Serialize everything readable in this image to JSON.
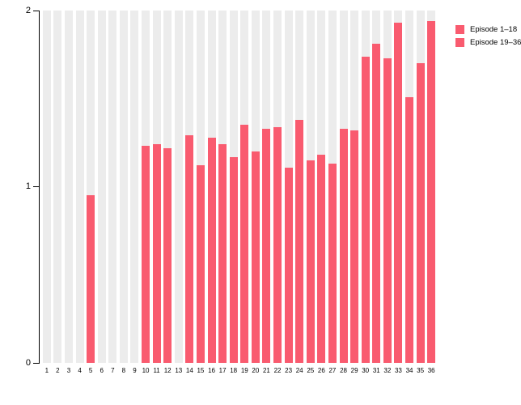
{
  "figure": {
    "background": "#ffffff",
    "bar_color": "#F95B6F",
    "stripe_color": "#ECECEC",
    "axis_color": "#000000"
  },
  "y_axis": {
    "tick_labels": [
      "0",
      "1",
      "2"
    ],
    "min": 0,
    "max": 2
  },
  "legend": {
    "items": [
      {
        "label": "Episode 1–18",
        "color": "#F95B6F"
      },
      {
        "label": "Episode 19–36",
        "color": "#F95B6F"
      }
    ]
  },
  "chart_data": {
    "type": "bar",
    "title": "",
    "xlabel": "",
    "ylabel": "",
    "categories": [
      1,
      2,
      3,
      4,
      5,
      6,
      7,
      8,
      9,
      10,
      11,
      12,
      13,
      14,
      15,
      16,
      17,
      18,
      19,
      20,
      21,
      22,
      23,
      24,
      25,
      26,
      27,
      28,
      29,
      30,
      31,
      32,
      33,
      34,
      35,
      36
    ],
    "series": [
      {
        "name": "Episode 1–18",
        "values": [
          0,
          0,
          0,
          0,
          0.95,
          0,
          0,
          0,
          0,
          1.23,
          1.24,
          1.22,
          0,
          1.29,
          1.12,
          1.28,
          1.24,
          1.17
        ]
      },
      {
        "name": "Episode 19–36",
        "values": [
          1.35,
          1.2,
          1.33,
          1.34,
          1.11,
          1.38,
          1.15,
          1.18,
          1.13,
          1.33,
          1.32,
          1.74,
          1.81,
          1.73,
          1.93,
          1.51,
          1.7,
          1.94
        ]
      }
    ],
    "ylim": [
      0,
      2
    ],
    "yticks": [
      0,
      1,
      2
    ],
    "grid": false,
    "background_stripes": true,
    "legend_position": "top-right"
  }
}
